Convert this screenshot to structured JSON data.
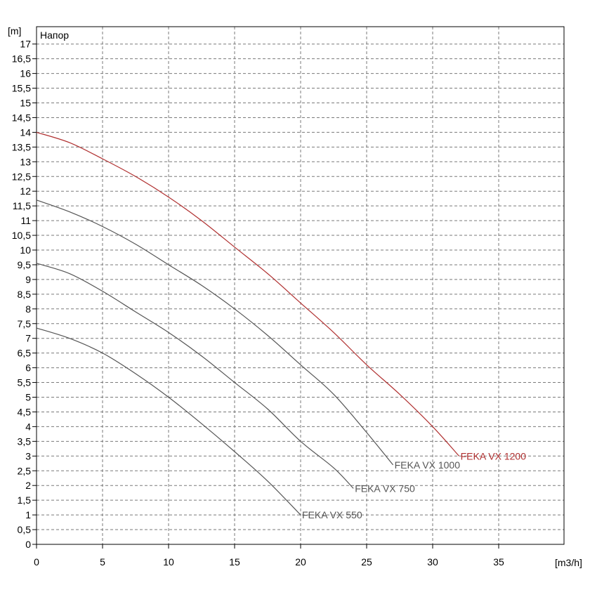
{
  "chart_data": {
    "type": "line",
    "title": "Напор",
    "xlabel": "[m3/h]",
    "ylabel": "[m]",
    "xlim": [
      0,
      40
    ],
    "ylim": [
      0,
      17.5
    ],
    "x_ticks": [
      0,
      5,
      10,
      15,
      20,
      25,
      30,
      35
    ],
    "y_ticks": [
      "0",
      "0,5",
      "1",
      "1,5",
      "2",
      "2,5",
      "3",
      "3,5",
      "4",
      "4,5",
      "5",
      "5,5",
      "6",
      "6,5",
      "7",
      "7,5",
      "8",
      "8,5",
      "9",
      "9,5",
      "10",
      "10,5",
      "11",
      "11,5",
      "12",
      "12,5",
      "13",
      "13,5",
      "14",
      "14,5",
      "15",
      "15,5",
      "16",
      "16,5",
      "17"
    ],
    "grid": true,
    "series": [
      {
        "name": "FEKA VX 1200",
        "color": "#b03030",
        "x": [
          0,
          2.5,
          5,
          7.5,
          10,
          12.5,
          15,
          17.5,
          20,
          22.5,
          25,
          27.5,
          30,
          32
        ],
        "y": [
          14.0,
          13.65,
          13.1,
          12.5,
          11.8,
          11.0,
          10.1,
          9.2,
          8.2,
          7.2,
          6.1,
          5.1,
          4.0,
          3.0
        ]
      },
      {
        "name": "FEKA VX 1000",
        "color": "#555555",
        "x": [
          0,
          2.5,
          5,
          7.5,
          10,
          12.5,
          15,
          17.5,
          20,
          22.5,
          25,
          27
        ],
        "y": [
          11.7,
          11.3,
          10.8,
          10.2,
          9.5,
          8.8,
          8.0,
          7.1,
          6.1,
          5.1,
          3.8,
          2.7
        ]
      },
      {
        "name": "FEKA VX 750",
        "color": "#555555",
        "x": [
          0,
          2.5,
          5,
          7.5,
          10,
          12.5,
          15,
          17.5,
          20,
          22.5,
          24
        ],
        "y": [
          9.55,
          9.2,
          8.6,
          7.9,
          7.2,
          6.4,
          5.5,
          4.6,
          3.5,
          2.6,
          1.9
        ]
      },
      {
        "name": "FEKA VX 550",
        "color": "#555555",
        "x": [
          0,
          2.5,
          5,
          7.5,
          10,
          12.5,
          15,
          17.5,
          20
        ],
        "y": [
          7.35,
          7.0,
          6.5,
          5.8,
          5.0,
          4.1,
          3.15,
          2.15,
          1.0
        ]
      }
    ]
  }
}
